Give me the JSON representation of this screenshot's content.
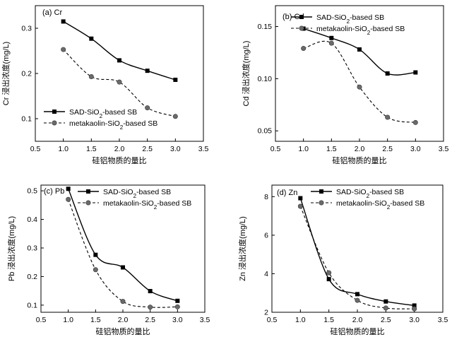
{
  "chart_data": [
    {
      "type": "line",
      "panel_label": "(a) Cr",
      "xlabel": "硅铝物质的量比",
      "ylabel": "Cr 浸出浓度(mg/L)",
      "xlim": [
        0.5,
        3.5
      ],
      "ylim": [
        0.05,
        0.35
      ],
      "xticks": [
        0.5,
        1.0,
        1.5,
        2.0,
        2.5,
        3.0,
        3.5
      ],
      "yticks": [
        0.1,
        0.2,
        0.3
      ],
      "x": [
        1.0,
        1.5,
        2.0,
        2.5,
        3.0
      ],
      "legend_position": "bottom-left",
      "series": [
        {
          "name": "SAD-SiO2-based SB",
          "values": [
            0.315,
            0.277,
            0.229,
            0.206,
            0.186
          ]
        },
        {
          "name": "metakaolin-SiO2-based SB",
          "values": [
            0.253,
            0.193,
            0.181,
            0.124,
            0.105
          ]
        }
      ]
    },
    {
      "type": "line",
      "panel_label": "(b) Cd",
      "xlabel": "硅铝物质的量比",
      "ylabel": "Cd 浸出浓度(mg/L)",
      "xlim": [
        0.5,
        3.5
      ],
      "ylim": [
        0.04,
        0.17
      ],
      "xticks": [
        0.5,
        1.0,
        1.5,
        2.0,
        2.5,
        3.0,
        3.5
      ],
      "yticks": [
        0.05,
        0.1,
        0.15
      ],
      "x": [
        1.0,
        1.5,
        2.0,
        2.5,
        3.0
      ],
      "legend_position": "top-right",
      "series": [
        {
          "name": "SAD-SiO2-based SB",
          "values": [
            0.148,
            0.139,
            0.128,
            0.105,
            0.106
          ]
        },
        {
          "name": "metakaolin-SiO2-based SB",
          "values": [
            0.129,
            0.134,
            0.092,
            0.063,
            0.058
          ]
        }
      ]
    },
    {
      "type": "line",
      "panel_label": "(c) Pb",
      "xlabel": "硅铝物质的量比",
      "ylabel": "Pb 浸出浓度(mg/L)",
      "xlim": [
        0.5,
        3.5
      ],
      "ylim": [
        0.075,
        0.52
      ],
      "xticks": [
        0.5,
        1.0,
        1.5,
        2.0,
        2.5,
        3.0,
        3.5
      ],
      "yticks": [
        0.1,
        0.2,
        0.3,
        0.4,
        0.5
      ],
      "x": [
        1.0,
        1.5,
        2.0,
        2.5,
        3.0
      ],
      "legend_position": "top-right",
      "series": [
        {
          "name": "SAD-SiO2-based SB",
          "values": [
            0.507,
            0.276,
            0.232,
            0.149,
            0.115
          ]
        },
        {
          "name": "metakaolin-SiO2-based SB",
          "values": [
            0.47,
            0.224,
            0.113,
            0.093,
            0.094
          ]
        }
      ]
    },
    {
      "type": "line",
      "panel_label": "(d) Zn",
      "xlabel": "硅铝物质的量比",
      "ylabel": "Zn 浸出浓度(mg/L)",
      "xlim": [
        0.5,
        3.5
      ],
      "ylim": [
        2,
        8.6
      ],
      "xticks": [
        0.5,
        1.0,
        1.5,
        2.0,
        2.5,
        3.0,
        3.5
      ],
      "yticks": [
        2,
        4,
        6,
        8
      ],
      "x": [
        1.0,
        1.5,
        2.0,
        2.5,
        3.0
      ],
      "legend_position": "top-right",
      "series": [
        {
          "name": "SAD-SiO2-based SB",
          "values": [
            7.92,
            3.72,
            2.94,
            2.56,
            2.35
          ]
        },
        {
          "name": "metakaolin-SiO2-based SB",
          "values": [
            7.5,
            4.05,
            2.62,
            2.22,
            2.18
          ]
        }
      ]
    }
  ]
}
